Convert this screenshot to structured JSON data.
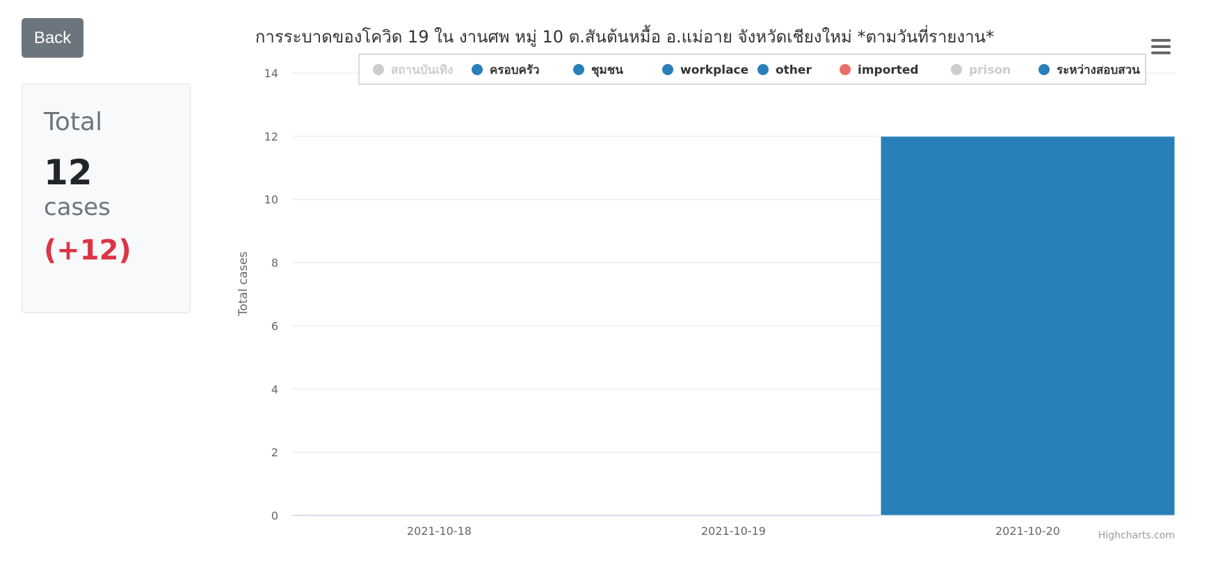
{
  "back_button": {
    "label": "Back"
  },
  "summary": {
    "label": "Total",
    "count": "12",
    "unit": "cases",
    "delta": "(+12)"
  },
  "menu": {
    "icon": "hamburger-menu-icon"
  },
  "credits": "Highcharts.com",
  "colors": {
    "series": "#2980b9",
    "imported": "#e8706a",
    "hidden": "#cccccc",
    "delta": "#dc3545"
  },
  "chart_data": {
    "type": "bar",
    "title": "การระบาดของโควิด 19 ใน งานศพ หมู่ 10 ต.สันต้นหมื้อ อ.แม่อาย จังหวัดเชียงใหม่ *ตามวันที่รายงาน*",
    "xlabel": "",
    "ylabel": "Total cases",
    "categories": [
      "2021-10-18",
      "2021-10-19",
      "2021-10-20"
    ],
    "ylim": [
      0,
      14
    ],
    "yticks": [
      0,
      2,
      4,
      6,
      8,
      10,
      12,
      14
    ],
    "stacked": true,
    "grid": true,
    "legend_position": "top",
    "legend": [
      {
        "name": "สถานบันเทิง",
        "color": "#cccccc",
        "visible": false
      },
      {
        "name": "ครอบครัว",
        "color": "#2980b9",
        "visible": true
      },
      {
        "name": "ชุมชน",
        "color": "#2980b9",
        "visible": true
      },
      {
        "name": "workplace",
        "color": "#2980b9",
        "visible": true
      },
      {
        "name": "other",
        "color": "#2980b9",
        "visible": true
      },
      {
        "name": "imported",
        "color": "#e8706a",
        "visible": true
      },
      {
        "name": "prison",
        "color": "#cccccc",
        "visible": false
      },
      {
        "name": "ระหว่างสอบสวน",
        "color": "#2980b9",
        "visible": true
      }
    ],
    "series": [
      {
        "name": "ครอบครัว",
        "values": [
          0,
          0,
          0
        ]
      },
      {
        "name": "ชุมชน",
        "values": [
          0,
          0,
          0
        ]
      },
      {
        "name": "workplace",
        "values": [
          0,
          0,
          0
        ]
      },
      {
        "name": "other",
        "values": [
          0,
          0,
          0
        ]
      },
      {
        "name": "imported",
        "values": [
          0,
          0,
          0
        ]
      },
      {
        "name": "ระหว่างสอบสวน",
        "values": [
          0,
          0,
          12
        ]
      }
    ]
  }
}
